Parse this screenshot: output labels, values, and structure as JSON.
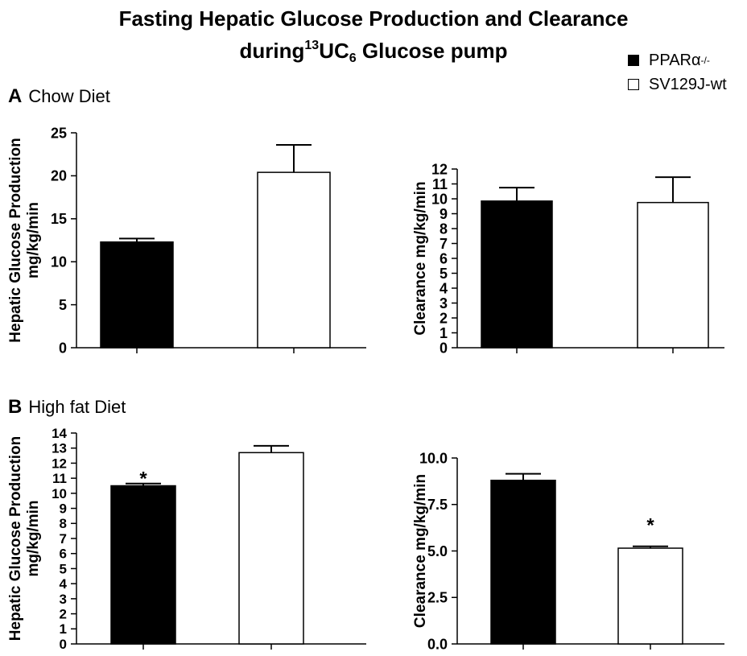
{
  "figure": {
    "title_line1": "Fasting Hepatic Glucose Production and Clearance",
    "title_line2_pre": "during",
    "title_line2_sup": "13",
    "title_line2_mid": "UC",
    "title_line2_sub": "6",
    "title_line2_post": " Glucose pump"
  },
  "legend": {
    "items": [
      {
        "label": "PPARα",
        "sup": "-/-",
        "color": "#000000"
      },
      {
        "label": "SV129J-wt",
        "sup": "",
        "color": "#ffffff"
      }
    ]
  },
  "panels": {
    "A": {
      "letter": "A",
      "label": "Chow Diet"
    },
    "B": {
      "letter": "B",
      "label": "High fat Diet"
    }
  },
  "chart_data": [
    {
      "type": "bar",
      "panel": "A",
      "ylabel": [
        "Hepatic Glucose Production",
        "mg/kg/min"
      ],
      "ylim": [
        0,
        25
      ],
      "yticks": [
        "0",
        "5",
        "10",
        "15",
        "20",
        "25"
      ],
      "series": [
        {
          "name": "PPARα-/-",
          "value": 12.3,
          "error": 0.4,
          "color": "#000000",
          "annotation": ""
        },
        {
          "name": "SV129J-wt",
          "value": 20.4,
          "error": 3.2,
          "color": "#ffffff",
          "annotation": ""
        }
      ]
    },
    {
      "type": "bar",
      "panel": "A",
      "ylabel": [
        "Clearance mg/kg/min"
      ],
      "ylim": [
        0,
        12
      ],
      "yticks": [
        "0",
        "1",
        "2",
        "3",
        "4",
        "5",
        "6",
        "7",
        "8",
        "9",
        "10",
        "11",
        "12"
      ],
      "series": [
        {
          "name": "PPARα-/-",
          "value": 9.85,
          "error": 0.9,
          "color": "#000000",
          "annotation": ""
        },
        {
          "name": "SV129J-wt",
          "value": 9.75,
          "error": 1.7,
          "color": "#ffffff",
          "annotation": ""
        }
      ]
    },
    {
      "type": "bar",
      "panel": "B",
      "ylabel": [
        "Hepatic Glucose Production",
        "mg/kg/min"
      ],
      "ylim": [
        0,
        14
      ],
      "yticks": [
        "0",
        "1",
        "2",
        "3",
        "4",
        "5",
        "6",
        "7",
        "8",
        "9",
        "10",
        "11",
        "12",
        "13",
        "14"
      ],
      "series": [
        {
          "name": "PPARα-/-",
          "value": 10.5,
          "error": 0.15,
          "color": "#000000",
          "annotation": "*"
        },
        {
          "name": "SV129J-wt",
          "value": 12.7,
          "error": 0.45,
          "color": "#ffffff",
          "annotation": ""
        }
      ]
    },
    {
      "type": "bar",
      "panel": "B",
      "ylabel": [
        "Clearance mg/kg/min"
      ],
      "ylim": [
        0,
        10
      ],
      "yticks": [
        "0.0",
        "2.5",
        "5.0",
        "7.5",
        "10.0"
      ],
      "series": [
        {
          "name": "PPARα-/-",
          "value": 8.8,
          "error": 0.35,
          "color": "#000000",
          "annotation": ""
        },
        {
          "name": "SV129J-wt",
          "value": 5.15,
          "error": 0.1,
          "color": "#ffffff",
          "annotation": "*"
        }
      ]
    }
  ]
}
